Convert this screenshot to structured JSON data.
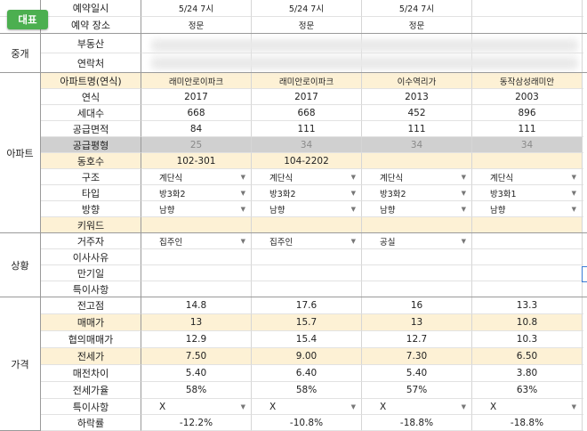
{
  "badge": "대표",
  "sections": {
    "broker": "중개",
    "apartment": "아파트",
    "status": "상황",
    "price": "가격"
  },
  "labels": {
    "reserve_date": "예약일시",
    "reserve_place": "예약 장소",
    "realestate": "부동산",
    "contact": "연락처",
    "apt_name": "아파트명(연식)",
    "year": "연식",
    "households": "세대수",
    "supply_area": "공급면적",
    "supply_pyeong": "공급평형",
    "dong_ho": "동호수",
    "structure": "구조",
    "type": "타입",
    "direction": "방향",
    "keyword": "키워드",
    "resident": "거주자",
    "move_reason": "이사사유",
    "expiry": "만기일",
    "notes": "특이사항",
    "prev_high": "전고점",
    "sale_price": "매매가",
    "nego_price": "협의매매가",
    "jeonse": "전세가",
    "gap": "매전차이",
    "jeonse_ratio": "전세가율",
    "special": "특이사항",
    "drop_rate": "하락률"
  },
  "cols": [
    {
      "date": "5/24 7시",
      "place": "정문",
      "apt": "래미안로이파크",
      "year": "2017",
      "households": "668",
      "area": "84",
      "pyeong": "25",
      "dongho": "102-301",
      "structure": "계단식",
      "type": "방3화2",
      "direction": "남향",
      "resident": "집주인",
      "prev_high": "14.8",
      "sale": "13",
      "nego": "12.9",
      "jeonse": "7.50",
      "gap": "5.40",
      "ratio": "58%",
      "special": "X",
      "drop": "-12.2%"
    },
    {
      "date": "5/24 7시",
      "place": "정문",
      "apt": "래미안로이파크",
      "year": "2017",
      "households": "668",
      "area": "111",
      "pyeong": "34",
      "dongho": "104-2202",
      "structure": "계단식",
      "type": "방3화2",
      "direction": "남향",
      "resident": "집주인",
      "prev_high": "17.6",
      "sale": "15.7",
      "nego": "15.4",
      "jeonse": "9.00",
      "gap": "6.40",
      "ratio": "58%",
      "special": "X",
      "drop": "-10.8%"
    },
    {
      "date": "5/24 7시",
      "place": "정문",
      "apt": "이수역리가",
      "year": "2013",
      "households": "452",
      "area": "111",
      "pyeong": "34",
      "dongho": "",
      "structure": "계단식",
      "type": "방3화2",
      "direction": "남향",
      "resident": "공실",
      "prev_high": "16",
      "sale": "13",
      "nego": "12.7",
      "jeonse": "7.30",
      "gap": "5.40",
      "ratio": "57%",
      "special": "X",
      "drop": "-18.8%"
    },
    {
      "date": "",
      "place": "",
      "apt": "동작삼성래미안",
      "year": "2003",
      "households": "896",
      "area": "111",
      "pyeong": "34",
      "dongho": "",
      "structure": "계단식",
      "type": "방3화1",
      "direction": "남향",
      "resident": "",
      "prev_high": "13.3",
      "sale": "10.8",
      "nego": "10.3",
      "jeonse": "6.50",
      "gap": "3.80",
      "ratio": "63%",
      "special": "X",
      "drop": "-18.8%"
    }
  ],
  "colors": {
    "highlight_row": "#fdf1d5",
    "gray_row": "#d0d0d0",
    "badge": "#4caf50"
  }
}
